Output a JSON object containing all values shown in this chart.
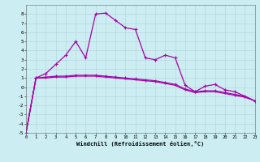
{
  "xlabel": "Windchill (Refroidissement éolien,°C)",
  "xlim": [
    0,
    23
  ],
  "ylim": [
    -5,
    9
  ],
  "xticks": [
    0,
    1,
    2,
    3,
    4,
    5,
    6,
    7,
    8,
    9,
    10,
    11,
    12,
    13,
    14,
    15,
    16,
    17,
    18,
    19,
    20,
    21,
    22,
    23
  ],
  "yticks": [
    -5,
    -4,
    -3,
    -2,
    -1,
    0,
    1,
    2,
    3,
    4,
    5,
    6,
    7,
    8
  ],
  "background_color": "#cceef2",
  "grid_color": "#b0d0d8",
  "line_color": "#aa00aa",
  "series1_x": [
    0,
    1,
    2,
    3,
    4,
    5,
    6,
    7,
    8,
    9,
    10,
    11,
    12,
    13,
    14,
    15,
    16,
    17,
    18,
    19,
    20,
    21,
    22,
    23
  ],
  "series1_y": [
    -5.0,
    1.0,
    1.5,
    2.5,
    3.5,
    5.0,
    3.2,
    8.0,
    8.1,
    7.3,
    6.5,
    6.3,
    3.2,
    3.0,
    3.5,
    3.2,
    0.2,
    -0.5,
    0.1,
    0.3,
    -0.3,
    -0.5,
    -1.0,
    -1.5
  ],
  "series2_x": [
    0,
    1,
    2,
    3,
    4,
    5,
    6,
    7,
    8,
    9,
    10,
    11,
    12,
    13,
    14,
    15,
    16,
    17,
    18,
    19,
    20,
    21,
    22,
    23
  ],
  "series2_y": [
    -5.0,
    1.0,
    1.1,
    1.2,
    1.2,
    1.3,
    1.3,
    1.3,
    1.2,
    1.1,
    1.0,
    0.9,
    0.8,
    0.7,
    0.5,
    0.3,
    -0.2,
    -0.5,
    -0.4,
    -0.4,
    -0.6,
    -0.8,
    -1.0,
    -1.5
  ],
  "series3_x": [
    0,
    1,
    2,
    3,
    4,
    5,
    6,
    7,
    8,
    9,
    10,
    11,
    12,
    13,
    14,
    15,
    16,
    17,
    18,
    19,
    20,
    21,
    22,
    23
  ],
  "series3_y": [
    -5.0,
    1.0,
    1.0,
    1.1,
    1.1,
    1.2,
    1.2,
    1.2,
    1.1,
    1.0,
    0.9,
    0.8,
    0.7,
    0.6,
    0.4,
    0.2,
    -0.3,
    -0.6,
    -0.5,
    -0.5,
    -0.7,
    -0.9,
    -1.1,
    -1.5
  ]
}
